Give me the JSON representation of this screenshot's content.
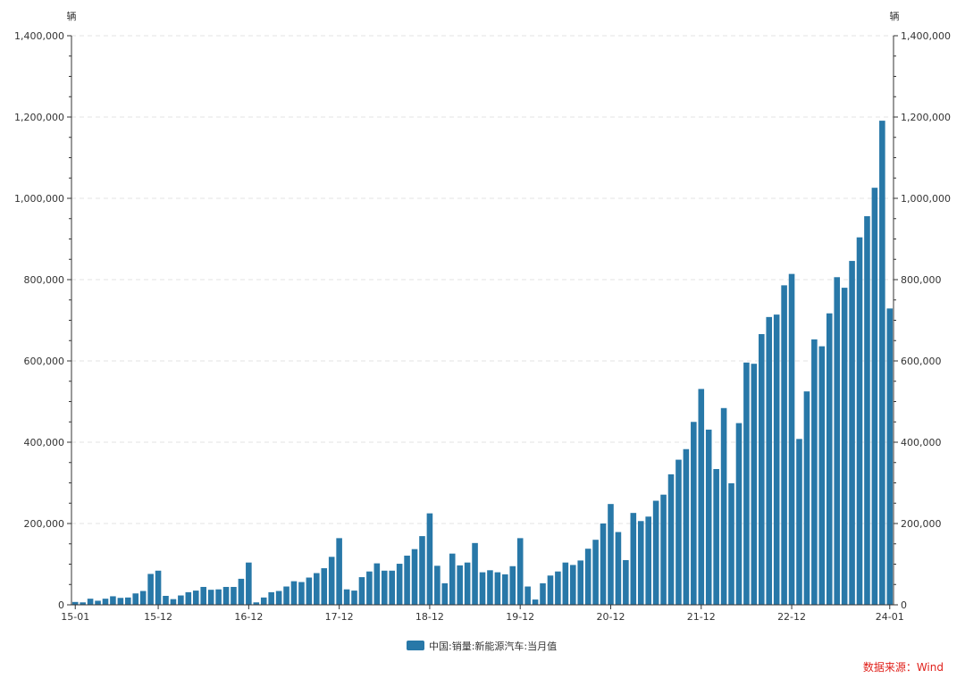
{
  "chart_data": {
    "type": "bar",
    "y_unit_left": "辆",
    "y_unit_right": "辆",
    "ylim": [
      0,
      1400000
    ],
    "y_ticks": [
      0,
      200000,
      400000,
      600000,
      800000,
      1000000,
      1200000,
      1400000
    ],
    "y_tick_labels": [
      "0",
      "200,000",
      "400,000",
      "600,000",
      "800,000",
      "1,000,000",
      "1,200,000",
      "1,400,000"
    ],
    "x_tick_labels": [
      "15-01",
      "15-12",
      "16-12",
      "17-12",
      "18-12",
      "19-12",
      "20-12",
      "21-12",
      "22-12",
      "24-01"
    ],
    "x_tick_months": [
      "2015-01",
      "2015-12",
      "2016-12",
      "2017-12",
      "2018-12",
      "2019-12",
      "2020-12",
      "2021-12",
      "2022-12",
      "2024-01"
    ],
    "grid": true,
    "legend": "bottom-center",
    "series": [
      {
        "name": "中国:销量:新能源汽车:当月值",
        "color": "#2878a8",
        "x": [
          "2015-01",
          "2015-02",
          "2015-03",
          "2015-04",
          "2015-05",
          "2015-06",
          "2015-07",
          "2015-08",
          "2015-09",
          "2015-10",
          "2015-11",
          "2015-12",
          "2016-01",
          "2016-02",
          "2016-03",
          "2016-04",
          "2016-05",
          "2016-06",
          "2016-07",
          "2016-08",
          "2016-09",
          "2016-10",
          "2016-11",
          "2016-12",
          "2017-01",
          "2017-02",
          "2017-03",
          "2017-04",
          "2017-05",
          "2017-06",
          "2017-07",
          "2017-08",
          "2017-09",
          "2017-10",
          "2017-11",
          "2017-12",
          "2018-01",
          "2018-02",
          "2018-03",
          "2018-04",
          "2018-05",
          "2018-06",
          "2018-07",
          "2018-08",
          "2018-09",
          "2018-10",
          "2018-11",
          "2018-12",
          "2019-01",
          "2019-02",
          "2019-03",
          "2019-04",
          "2019-05",
          "2019-06",
          "2019-07",
          "2019-08",
          "2019-09",
          "2019-10",
          "2019-11",
          "2019-12",
          "2020-01",
          "2020-02",
          "2020-03",
          "2020-04",
          "2020-05",
          "2020-06",
          "2020-07",
          "2020-08",
          "2020-09",
          "2020-10",
          "2020-11",
          "2020-12",
          "2021-01",
          "2021-02",
          "2021-03",
          "2021-04",
          "2021-05",
          "2021-06",
          "2021-07",
          "2021-08",
          "2021-09",
          "2021-10",
          "2021-11",
          "2021-12",
          "2022-01",
          "2022-02",
          "2022-03",
          "2022-04",
          "2022-05",
          "2022-06",
          "2022-07",
          "2022-08",
          "2022-09",
          "2022-10",
          "2022-11",
          "2022-12",
          "2023-01",
          "2023-02",
          "2023-03",
          "2023-04",
          "2023-05",
          "2023-06",
          "2023-07",
          "2023-08",
          "2023-09",
          "2023-10",
          "2023-11",
          "2023-12",
          "2024-01"
        ],
        "values": [
          7000,
          6000,
          15000,
          10000,
          15000,
          21000,
          17000,
          18000,
          28000,
          34000,
          76000,
          84000,
          22000,
          14000,
          23000,
          31000,
          35000,
          44000,
          37000,
          38000,
          44000,
          44000,
          64000,
          104000,
          6000,
          18000,
          31000,
          34000,
          45000,
          58000,
          56000,
          67000,
          78000,
          90000,
          118000,
          164000,
          38000,
          35000,
          68000,
          82000,
          102000,
          84000,
          84000,
          101000,
          121000,
          137000,
          169000,
          225000,
          96000,
          53000,
          126000,
          97000,
          104000,
          152000,
          80000,
          85000,
          80000,
          75000,
          95000,
          164000,
          45000,
          13000,
          53000,
          72000,
          82000,
          104000,
          98000,
          109000,
          138000,
          160000,
          200000,
          248000,
          179000,
          110000,
          226000,
          206000,
          217000,
          256000,
          271000,
          321000,
          357000,
          383000,
          450000,
          531000,
          431000,
          334000,
          484000,
          299000,
          447000,
          596000,
          593000,
          666000,
          708000,
          714000,
          786000,
          814000,
          408000,
          525000,
          653000,
          636000,
          717000,
          806000,
          780000,
          846000,
          904000,
          956000,
          1026000,
          1191000,
          729000
        ]
      }
    ],
    "source": "数据来源：Wind"
  }
}
